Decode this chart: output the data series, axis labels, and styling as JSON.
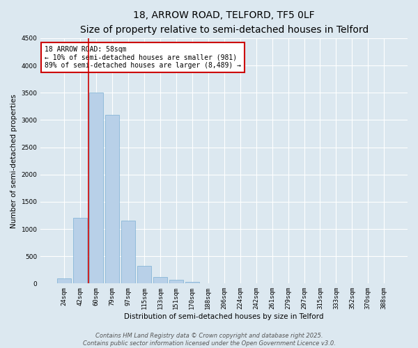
{
  "title": "18, ARROW ROAD, TELFORD, TF5 0LF",
  "subtitle": "Size of property relative to semi-detached houses in Telford",
  "xlabel": "Distribution of semi-detached houses by size in Telford",
  "ylabel": "Number of semi-detached properties",
  "categories": [
    "24sqm",
    "42sqm",
    "60sqm",
    "79sqm",
    "97sqm",
    "115sqm",
    "133sqm",
    "151sqm",
    "170sqm",
    "188sqm",
    "206sqm",
    "224sqm",
    "242sqm",
    "261sqm",
    "279sqm",
    "297sqm",
    "315sqm",
    "333sqm",
    "352sqm",
    "370sqm",
    "388sqm"
  ],
  "values": [
    100,
    1200,
    3500,
    3100,
    1150,
    320,
    120,
    70,
    30,
    10,
    5,
    3,
    2,
    1,
    1,
    1,
    0,
    0,
    0,
    0,
    0
  ],
  "bar_color": "#b8d0e8",
  "bar_edge_color": "#7aafd4",
  "vline_x": 1.5,
  "vline_color": "#cc0000",
  "ylim": [
    0,
    4500
  ],
  "yticks": [
    0,
    500,
    1000,
    1500,
    2000,
    2500,
    3000,
    3500,
    4000,
    4500
  ],
  "annotation_title": "18 ARROW ROAD: 58sqm",
  "annotation_line1": "← 10% of semi-detached houses are smaller (981)",
  "annotation_line2": "89% of semi-detached houses are larger (8,489) →",
  "annotation_box_facecolor": "#ffffff",
  "annotation_box_edge_color": "#cc0000",
  "footer_line1": "Contains HM Land Registry data © Crown copyright and database right 2025.",
  "footer_line2": "Contains public sector information licensed under the Open Government Licence v3.0.",
  "bg_color": "#dce8f0",
  "plot_bg_color": "#dce8f0",
  "grid_color": "#ffffff",
  "title_fontsize": 10,
  "subtitle_fontsize": 8.5,
  "axis_label_fontsize": 7.5,
  "tick_fontsize": 6.5,
  "annotation_fontsize": 7,
  "footer_fontsize": 6
}
